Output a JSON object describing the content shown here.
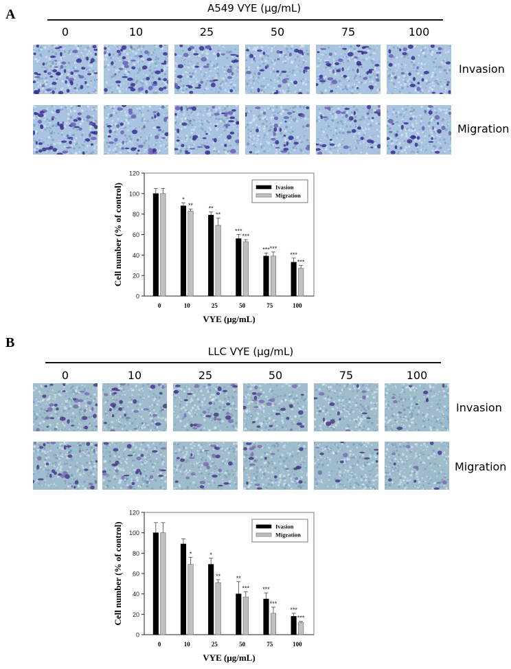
{
  "figure": {
    "panels": [
      {
        "letter": "A",
        "cell_line": "A549",
        "group_title": "A549   VYE (μg/mL)",
        "doses": [
          "0",
          "10",
          "25",
          "50",
          "75",
          "100"
        ],
        "row_labels": [
          "Invasion",
          "Migration"
        ],
        "micrograph_desc": "Crystal violet stained transwell micrographs, purple cells on blue membrane background",
        "colors": {
          "background": "#a9c4e0",
          "cells": "#3b2f8f",
          "cells_light": "#6b63b5"
        }
      },
      {
        "letter": "B",
        "cell_line": "LLC",
        "group_title": "LLC   VYE (μg/mL)",
        "doses": [
          "0",
          "10",
          "25",
          "50",
          "75",
          "100"
        ],
        "row_labels": [
          "Invasion",
          "Migration"
        ],
        "micrograph_desc": "Crystal violet stained transwell micrographs, purple cells on teal-blue membrane background",
        "colors": {
          "background": "#9fbccc",
          "cells": "#4a3a8a",
          "cells_light": "#7a6fb0"
        }
      }
    ]
  },
  "chart_data": [
    {
      "type": "bar",
      "panel": "A",
      "title": "",
      "xlabel": "VYE (μg/mL)",
      "ylabel": "Cell number (% of control)",
      "categories": [
        "0",
        "10",
        "25",
        "50",
        "75",
        "100"
      ],
      "yticks": [
        "0",
        "20",
        "40",
        "60",
        "80",
        "100",
        "120"
      ],
      "ylim": [
        0,
        120
      ],
      "grid": false,
      "legend_position": "upper right",
      "series": [
        {
          "name": "Ivasion",
          "color": "#000000",
          "values": [
            100,
            88,
            79,
            56,
            39,
            33
          ],
          "errors": [
            5,
            3,
            3,
            4,
            3,
            4
          ],
          "significance": [
            "",
            "*",
            "**",
            "***",
            "***",
            "***"
          ]
        },
        {
          "name": "Migration",
          "color": "#c0c0c0",
          "values": [
            100,
            83,
            69,
            53,
            39,
            27
          ],
          "errors": [
            5,
            2,
            7,
            2,
            4,
            3
          ],
          "significance": [
            "",
            "**",
            "**",
            "***",
            "***",
            "***"
          ]
        }
      ]
    },
    {
      "type": "bar",
      "panel": "B",
      "title": "",
      "xlabel": "VYE (μg/mL)",
      "ylabel": "Cell number (% of control)",
      "categories": [
        "0",
        "10",
        "25",
        "50",
        "75",
        "100"
      ],
      "yticks": [
        "0",
        "20",
        "40",
        "60",
        "80",
        "100",
        "120"
      ],
      "ylim": [
        0,
        120
      ],
      "grid": false,
      "legend_position": "upper right",
      "series": [
        {
          "name": "Ivasion",
          "color": "#000000",
          "values": [
            100,
            89,
            69,
            40,
            35,
            18
          ],
          "errors": [
            10,
            5,
            6,
            12,
            6,
            3
          ],
          "significance": [
            "",
            "",
            "*",
            "**",
            "***",
            "***"
          ]
        },
        {
          "name": "Migration",
          "color": "#c0c0c0",
          "values": [
            100,
            69,
            51,
            37,
            21,
            12
          ],
          "errors": [
            10,
            7,
            3,
            5,
            6,
            1
          ],
          "significance": [
            "",
            "*",
            "**",
            "***",
            "***",
            "***"
          ]
        }
      ]
    }
  ]
}
